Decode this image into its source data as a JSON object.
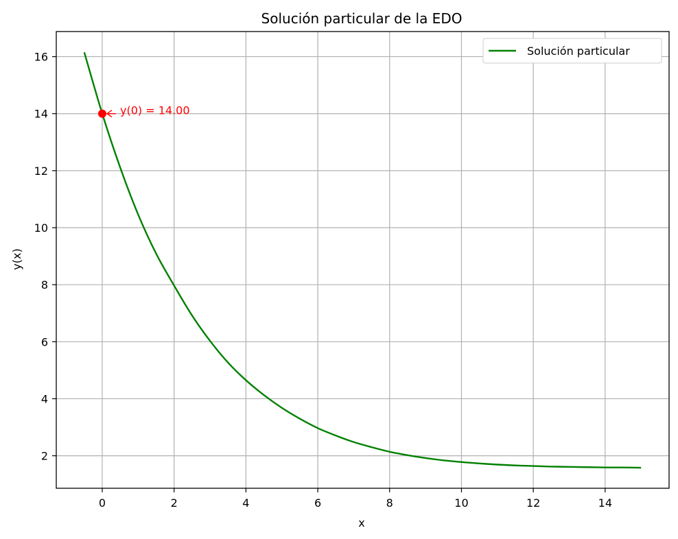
{
  "chart_data": {
    "type": "line",
    "title": "Solución particular de la EDO",
    "xlabel": "x",
    "ylabel": "y(x)",
    "xlim": [
      -1.28,
      15.78
    ],
    "ylim": [
      0.86,
      16.88
    ],
    "xticks": [
      0,
      2,
      4,
      6,
      8,
      10,
      12,
      14
    ],
    "yticks": [
      2,
      4,
      6,
      8,
      10,
      12,
      14,
      16
    ],
    "grid": true,
    "legend_position": "top-right",
    "series": [
      {
        "name": "Solución particular",
        "color": "#008000",
        "x": [
          -0.5,
          0,
          0.5,
          1,
          1.5,
          2,
          2.5,
          3,
          3.5,
          4,
          4.5,
          5,
          5.5,
          6,
          6.5,
          7,
          7.5,
          8,
          8.5,
          9,
          9.5,
          10,
          10.5,
          11,
          11.5,
          12,
          12.5,
          13,
          13.5,
          14,
          14.5,
          15
        ],
        "y": [
          16.15,
          14.0,
          12.11,
          10.46,
          9.09,
          7.97,
          6.92,
          6.03,
          5.27,
          4.65,
          4.13,
          3.68,
          3.3,
          2.97,
          2.71,
          2.48,
          2.3,
          2.14,
          2.02,
          1.92,
          1.84,
          1.78,
          1.73,
          1.69,
          1.66,
          1.64,
          1.62,
          1.61,
          1.6,
          1.59,
          1.59,
          1.58
        ]
      }
    ],
    "highlight_point": {
      "x": 0,
      "y": 14,
      "color": "#ff0000"
    },
    "annotation": {
      "text": "y(0) = 14.00",
      "color": "#ff0000"
    }
  }
}
